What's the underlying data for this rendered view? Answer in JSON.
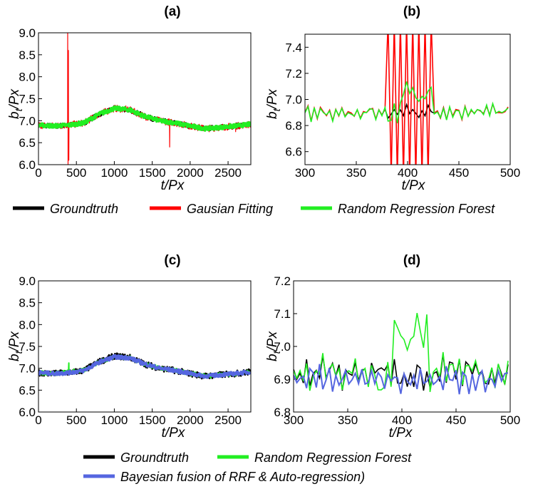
{
  "legends": {
    "top": [
      {
        "label": "Groundtruth",
        "color": "#000000"
      },
      {
        "label": "Gausian Fitting",
        "color": "#ff0000"
      },
      {
        "label": "Random Regression Forest",
        "color": "#22ee22"
      }
    ],
    "bottom": [
      {
        "label": "Groundtruth",
        "color": "#000000"
      },
      {
        "label": "Random Regression Forest",
        "color": "#22ee22"
      },
      {
        "label": "Bayesian fusion of RRF & Auto-regression)",
        "color": "#5566e0"
      }
    ]
  },
  "chart_data": [
    {
      "type": "line",
      "title": "(a)",
      "xlabel": "t/Px",
      "ylabel": "b_t/Px",
      "xlim": [
        0,
        2800
      ],
      "ylim": [
        6.0,
        9.0
      ],
      "xticks": [
        "0",
        "500",
        "1000",
        "1500",
        "2000",
        "2500"
      ],
      "yticks": [
        "6.0",
        "6.5",
        "7.0",
        "7.5",
        "8.0",
        "8.5",
        "9.0"
      ],
      "x": [
        0,
        200,
        400,
        600,
        800,
        1000,
        1200,
        1400,
        1600,
        1800,
        2000,
        2200,
        2400,
        2600,
        2800
      ],
      "series": [
        {
          "name": "Groundtruth",
          "color": "#000000",
          "values": [
            6.9,
            6.88,
            6.9,
            6.95,
            7.15,
            7.28,
            7.25,
            7.1,
            7.0,
            6.95,
            6.88,
            6.82,
            6.85,
            6.88,
            6.92
          ]
        },
        {
          "name": "Gausian Fitting",
          "color": "#ff0000",
          "values": [
            6.9,
            6.88,
            6.9,
            6.95,
            7.15,
            7.28,
            7.25,
            7.1,
            7.0,
            6.95,
            6.88,
            6.82,
            6.85,
            6.88,
            6.92
          ],
          "spikes": [
            [
              385,
              9.0
            ],
            [
              390,
              6.0
            ],
            [
              395,
              8.6
            ],
            [
              400,
              6.1
            ],
            [
              1730,
              6.4
            ],
            [
              2600,
              6.75
            ]
          ]
        },
        {
          "name": "Random Regression Forest",
          "color": "#22ee22",
          "values": [
            6.9,
            6.88,
            6.9,
            6.95,
            7.15,
            7.28,
            7.25,
            7.1,
            7.0,
            6.95,
            6.88,
            6.82,
            6.85,
            6.88,
            6.92
          ]
        }
      ]
    },
    {
      "type": "line",
      "title": "(b)",
      "xlabel": "t/Px",
      "ylabel": "b_t/Px",
      "xlim": [
        300,
        500
      ],
      "ylim": [
        6.5,
        7.5
      ],
      "xticks": [
        "300",
        "350",
        "400",
        "450",
        "500"
      ],
      "yticks": [
        "6.6",
        "6.8",
        "7.0",
        "7.2",
        "7.4"
      ],
      "series": [
        {
          "name": "Groundtruth",
          "color": "#000000",
          "range": [
            375,
            440
          ]
        },
        {
          "name": "Gausian Fitting",
          "color": "#ff0000",
          "range": [
            300,
            500
          ]
        },
        {
          "name": "Random Regression Forest",
          "color": "#22ee22",
          "range": [
            300,
            500
          ]
        }
      ]
    },
    {
      "type": "line",
      "title": "(c)",
      "xlabel": "t/Px",
      "ylabel": "b_t/Px",
      "xlim": [
        0,
        2800
      ],
      "ylim": [
        6.0,
        9.0
      ],
      "xticks": [
        "0",
        "500",
        "1000",
        "1500",
        "2000",
        "2500"
      ],
      "yticks": [
        "6.0",
        "6.5",
        "7.0",
        "7.5",
        "8.0",
        "8.5",
        "9.0"
      ],
      "x": [
        0,
        200,
        400,
        600,
        800,
        1000,
        1200,
        1400,
        1600,
        1800,
        2000,
        2200,
        2400,
        2600,
        2800
      ],
      "series": [
        {
          "name": "Groundtruth",
          "color": "#000000",
          "values": [
            6.9,
            6.88,
            6.9,
            6.95,
            7.15,
            7.28,
            7.25,
            7.1,
            7.0,
            6.95,
            6.88,
            6.82,
            6.85,
            6.88,
            6.92
          ]
        },
        {
          "name": "Random Regression Forest",
          "color": "#22ee22",
          "values": [
            6.9,
            6.88,
            6.92,
            6.95,
            7.15,
            7.26,
            7.24,
            7.1,
            7.0,
            6.95,
            6.88,
            6.82,
            6.85,
            6.88,
            6.92
          ]
        },
        {
          "name": "Bayesian fusion of RRF & Auto-regression)",
          "color": "#5566e0",
          "values": [
            6.9,
            6.88,
            6.9,
            6.95,
            7.14,
            7.26,
            7.24,
            7.1,
            7.0,
            6.95,
            6.88,
            6.82,
            6.85,
            6.88,
            6.92
          ]
        }
      ]
    },
    {
      "type": "line",
      "title": "(d)",
      "xlabel": "t/Px",
      "ylabel": "b_t/Px",
      "xlim": [
        300,
        500
      ],
      "ylim": [
        6.8,
        7.2
      ],
      "xticks": [
        "300",
        "350",
        "400",
        "450",
        "500"
      ],
      "yticks": [
        "6.8",
        "6.9",
        "7.0",
        "7.1",
        "7.2"
      ],
      "series": [
        {
          "name": "Groundtruth",
          "color": "#000000",
          "range": [
            300,
            500
          ]
        },
        {
          "name": "Random Regression Forest",
          "color": "#22ee22",
          "range": [
            300,
            500
          ]
        },
        {
          "name": "Bayesian fusion of RRF & Auto-regression)",
          "color": "#5566e0",
          "range": [
            300,
            500
          ]
        }
      ]
    }
  ]
}
